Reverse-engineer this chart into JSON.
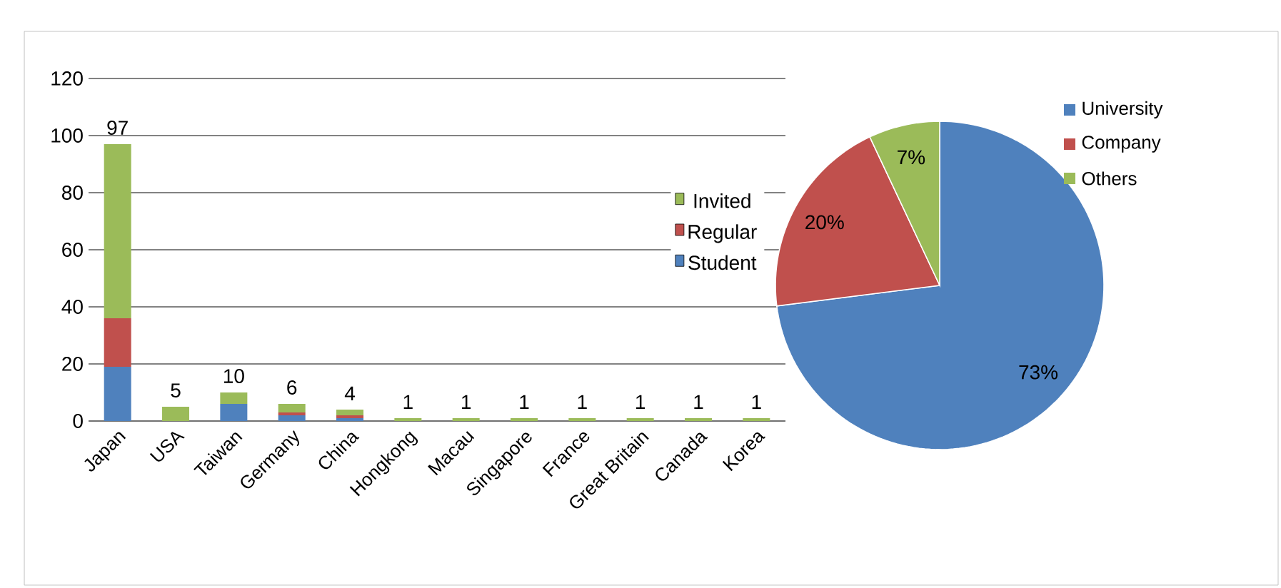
{
  "chart_data": [
    {
      "type": "bar",
      "stacked": true,
      "categories": [
        "Japan",
        "USA",
        "Taiwan",
        "Germany",
        "China",
        "Hongkong",
        "Macau",
        "Singapore",
        "France",
        "Great Britain",
        "Canada",
        "Korea"
      ],
      "series": [
        {
          "name": "Student",
          "color": "#4f81bd",
          "values": [
            19,
            0,
            6,
            2,
            1,
            0,
            0,
            0,
            0,
            0,
            0,
            0
          ]
        },
        {
          "name": "Regular",
          "color": "#c0504d",
          "values": [
            17,
            0,
            0,
            1,
            1,
            0,
            0,
            0,
            0,
            0,
            0,
            0
          ]
        },
        {
          "name": "Invited",
          "color": "#9bbb59",
          "values": [
            61,
            5,
            4,
            3,
            2,
            1,
            1,
            1,
            1,
            1,
            1,
            1
          ]
        }
      ],
      "totals": [
        "97",
        "5",
        "10",
        "6",
        "4",
        "1",
        "1",
        "1",
        "1",
        "1",
        "1",
        "1"
      ],
      "ylim": [
        0,
        120
      ],
      "yticks": [
        0,
        20,
        40,
        60,
        80,
        100,
        120
      ],
      "grid": "y",
      "legend": "right"
    },
    {
      "type": "pie",
      "categories": [
        "University",
        "Company",
        "Others"
      ],
      "values": [
        73,
        20,
        7
      ],
      "colors": [
        "#4f81bd",
        "#c0504d",
        "#9bbb59"
      ],
      "value_labels": [
        "73%",
        "20%",
        "7%"
      ],
      "legend": "top right"
    }
  ]
}
